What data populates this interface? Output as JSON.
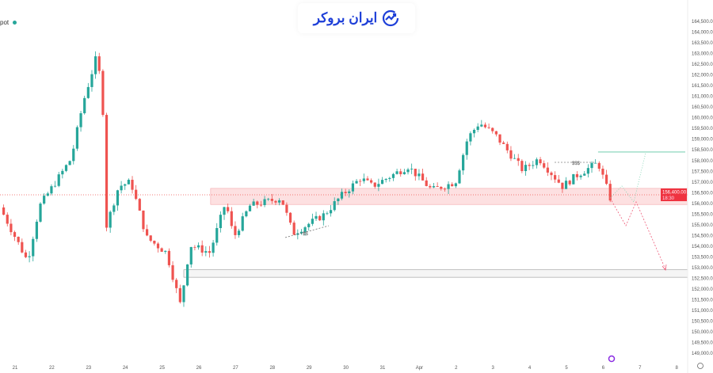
{
  "symbol": "pot",
  "logo_text": "ایران بروکر",
  "chart_data": {
    "type": "candlestick",
    "y_axis": {
      "min": 149000,
      "max": 164500,
      "step": 500
    },
    "y_ticks": [
      "164,500.00",
      "164,000.00",
      "163,500.00",
      "163,000.00",
      "162,500.00",
      "162,000.00",
      "161,500.00",
      "161,000.00",
      "160,500.00",
      "160,000.00",
      "159,500.00",
      "159,000.00",
      "158,500.00",
      "158,000.00",
      "157,500.00",
      "157,000.00",
      "156,500.00",
      "156,000.00",
      "155,500.00",
      "155,000.00",
      "154,500.00",
      "154,000.00",
      "153,500.00",
      "153,000.00",
      "152,500.00",
      "152,000.00",
      "151,500.00",
      "151,000.00",
      "150,500.00",
      "150,000.00",
      "149,500.00",
      "149,000.00"
    ],
    "x_ticks": [
      "21",
      "22",
      "23",
      "24",
      "25",
      "26",
      "27",
      "28",
      "29",
      "30",
      "31",
      "Apr",
      "2",
      "3",
      "4",
      "5",
      "6",
      "7",
      "8"
    ],
    "price_path_days_from_21": [
      [
        -0.41,
        155810
      ],
      [
        0.34,
        153300
      ],
      [
        0.67,
        155880
      ],
      [
        1.53,
        158100
      ],
      [
        1.85,
        160700
      ],
      [
        2.24,
        163000
      ],
      [
        2.39,
        160300
      ],
      [
        2.46,
        154800
      ],
      [
        2.82,
        156800
      ],
      [
        3.15,
        157000
      ],
      [
        3.58,
        154400
      ],
      [
        4.12,
        153700
      ],
      [
        4.5,
        151250
      ],
      [
        4.76,
        154050
      ],
      [
        5.3,
        153700
      ],
      [
        5.73,
        156070
      ],
      [
        5.95,
        154400
      ],
      [
        6.38,
        155880
      ],
      [
        7.24,
        156250
      ],
      [
        7.56,
        154600
      ],
      [
        8.43,
        155500
      ],
      [
        8.86,
        156330
      ],
      [
        9.4,
        157180
      ],
      [
        9.72,
        156800
      ],
      [
        10.69,
        157730
      ],
      [
        11.34,
        156620
      ],
      [
        11.98,
        157000
      ],
      [
        12.31,
        159030
      ],
      [
        12.63,
        159770
      ],
      [
        13.06,
        159200
      ],
      [
        13.81,
        157560
      ],
      [
        14.25,
        158100
      ],
      [
        14.89,
        156800
      ],
      [
        15.32,
        157360
      ],
      [
        15.86,
        157900
      ],
      [
        16.19,
        156250
      ]
    ],
    "current_price": {
      "label": "156,400.00",
      "value": 156400,
      "countdown": "18:30"
    },
    "zones": [
      {
        "name": "resistance-zone",
        "from": 155950,
        "to": 156700,
        "start_day": 5.32
      },
      {
        "name": "support-zone",
        "from": 152550,
        "to": 152900,
        "start_day": 4.59
      }
    ],
    "target_line": {
      "value": 158400,
      "start_day": 15.86
    },
    "annotations": [
      "$$$",
      "$$"
    ],
    "colors": {
      "up": "#26a69a",
      "down": "#ef5350",
      "zone": "#f7b8bb",
      "projection": "#ef5d7a"
    }
  }
}
